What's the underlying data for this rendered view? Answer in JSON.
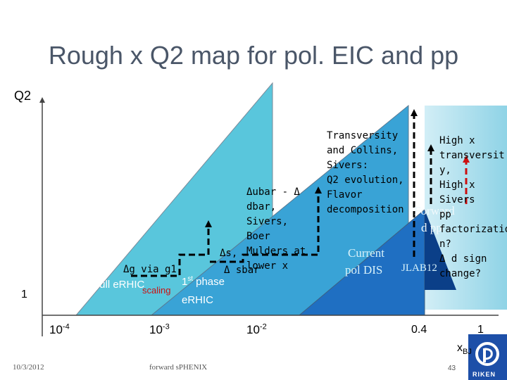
{
  "title": "Rough x Q2 map for pol. EIC and pp",
  "axes": {
    "y_label": "Q2",
    "y_tick": "1",
    "x_unit": "x",
    "x_unit_sub": "BJ"
  },
  "x_ticks": [
    {
      "base": "10",
      "exp": "-4"
    },
    {
      "base": "10",
      "exp": "-3"
    },
    {
      "base": "10",
      "exp": "-2"
    }
  ],
  "x_tick_04": "0.4",
  "x_tick_1": "1",
  "labels": {
    "full_erhic": "Full eRHIC",
    "first_phase_pre": "1",
    "first_phase_sup": "st",
    "first_phase_post": " phase",
    "erhic": "eRHIC",
    "scaling": "scaling",
    "dg": "Δg via g1",
    "ds": "Δs,",
    "dsbar": "Δ sbar",
    "dubar": [
      "Δubar - Δ",
      "dbar,",
      "Sivers,",
      "Boer",
      "Mulders at",
      "lower x"
    ],
    "transversity": [
      "Transversity",
      "and Collins,",
      "Sivers:",
      "Q2 evolution,",
      "Flavor",
      "decomposition"
    ],
    "current": [
      "Current",
      "pol DIS"
    ],
    "jlab": "JLAB12",
    "forward": [
      "Forward",
      "d pp"
    ],
    "highx": [
      "High x",
      "transversit",
      "y,",
      "High x",
      "Sivers",
      "pp",
      "factorizatio",
      "n?",
      "Δ d sign",
      "change?"
    ]
  },
  "footer": {
    "date": "10/3/2012",
    "center": "forward sPHENIX",
    "page": "43"
  },
  "logo_text": "RIKEN",
  "colors": {
    "large_triangle": "#59c6dc",
    "medium_triangle": "#39a3d6",
    "small_triangle": "#1f6fc2",
    "title": "#4a5668",
    "red_arrow": "#cc1010"
  }
}
